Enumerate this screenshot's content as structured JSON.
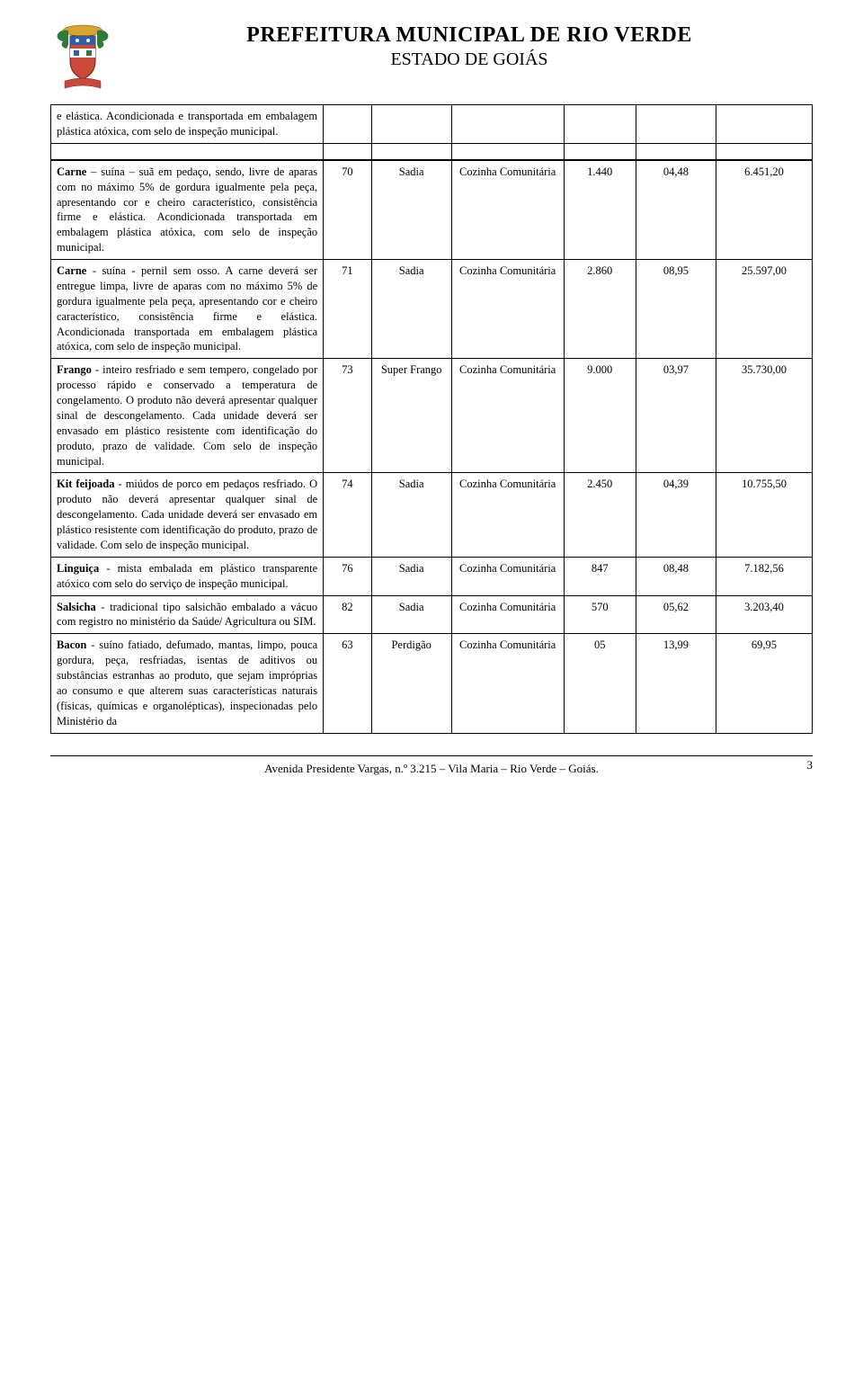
{
  "header": {
    "line1": "PREFEITURA MUNICIPAL DE RIO VERDE",
    "line2": "ESTADO DE GOIÁS"
  },
  "top_row_desc": "e elástica. Acondicionada e transportada em embalagem plástica atóxica, com selo de inspeção municipal.",
  "rows": [
    {
      "desc": "Carne – suína – suã em pedaço, sendo, livre de aparas com no máximo 5% de gordura igualmente pela peça, apresentando cor e cheiro característico, consistência firme e elástica. Acondicionada transportada em embalagem plástica atóxica, com selo de inspeção municipal.",
      "num": "70",
      "marca": "Sadia",
      "dest": "Cozinha Comunitária",
      "qtd": "1.440",
      "unit": "04,48",
      "total": "6.451,20"
    },
    {
      "desc": "Carne - suína - pernil sem osso. A carne deverá ser entregue limpa, livre de aparas com no máximo 5% de gordura igualmente pela peça, apresentando cor e cheiro característico, consistência firme e elástica. Acondicionada transportada em embalagem plástica atóxica, com selo de inspeção municipal.",
      "num": "71",
      "marca": "Sadia",
      "dest": "Cozinha Comunitária",
      "qtd": "2.860",
      "unit": "08,95",
      "total": "25.597,00"
    },
    {
      "desc": "Frango - inteiro resfriado e sem tempero, congelado por processo rápido e conservado a temperatura de congelamento. O produto não deverá apresentar qualquer sinal de descongelamento. Cada unidade deverá ser envasado em plástico resistente com identificação do produto, prazo de validade. Com selo de inspeção municipal.",
      "num": "73",
      "marca": "Super Frango",
      "dest": "Cozinha Comunitária",
      "qtd": "9.000",
      "unit": "03,97",
      "total": "35.730,00"
    },
    {
      "desc": "Kit feijoada - miúdos de porco em pedaços resfriado. O produto não deverá apresentar qualquer sinal de descongelamento. Cada unidade deverá ser envasado em plástico resistente com identificação do produto, prazo de validade. Com selo de inspeção municipal.",
      "num": "74",
      "marca": "Sadia",
      "dest": "Cozinha Comunitária",
      "qtd": "2.450",
      "unit": "04,39",
      "total": "10.755,50"
    },
    {
      "desc": "Linguiça - mista embalada em plástico transparente atóxico com selo do serviço de inspeção municipal.",
      "num": "76",
      "marca": "Sadia",
      "dest": "Cozinha Comunitária",
      "qtd": "847",
      "unit": "08,48",
      "total": "7.182,56"
    },
    {
      "desc": "Salsicha - tradicional tipo salsichão embalado a vácuo com registro no ministério da Saúde/ Agricultura ou SIM.",
      "num": "82",
      "marca": "Sadia",
      "dest": "Cozinha Comunitária",
      "qtd": "570",
      "unit": "05,62",
      "total": "3.203,40"
    },
    {
      "desc": "Bacon - suíno fatiado, defumado, mantas, limpo, pouca gordura, peça, resfriadas, isentas de aditivos ou substâncias estranhas ao produto, que sejam impróprias ao consumo e que alterem suas características naturais (físicas, químicas e organolépticas), inspecionadas pelo Ministério da",
      "num": "63",
      "marca": "Perdigão",
      "dest": "Cozinha Comunitária",
      "qtd": "05",
      "unit": "13,99",
      "total": "69,95"
    }
  ],
  "footer": {
    "address": "Avenida Presidente Vargas, n.º 3.215 – Vila Maria – Rio Verde – Goiás.",
    "page": "3"
  },
  "crest_colors": {
    "shield": "#c94a3b",
    "band": "#2f7a3a",
    "gold": "#d9a531",
    "blue": "#2c5fa8"
  }
}
